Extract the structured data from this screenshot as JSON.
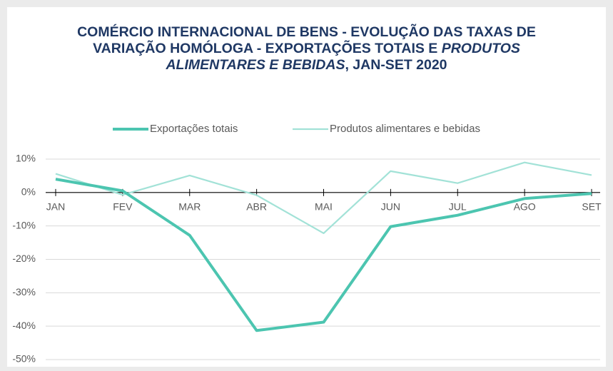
{
  "chart_data": {
    "type": "line",
    "title": [
      "COMÉRCIO INTERNACIONAL DE BENS - EVOLUÇÃO DAS TAXAS DE VARIAÇÃO HOMÓLOGA - EXPORTAÇÕES TOTAIS E ",
      "PRODUTOS ALIMENTARES E BEBIDAS",
      ", JAN-SET 2020"
    ],
    "categories": [
      "JAN",
      "FEV",
      "MAR",
      "ABR",
      "MAI",
      "JUN",
      "JUL",
      "AGO",
      "SET"
    ],
    "series": [
      {
        "name": "Exportações totais",
        "color": "#4cc5b0",
        "values": [
          4,
          0.5,
          -12.8,
          -41.3,
          -38.8,
          -10.2,
          -6.8,
          -1.8,
          -0.3
        ]
      },
      {
        "name": "Produtos alimentares e bebidas",
        "color": "#a2e2d7",
        "values": [
          5.6,
          -0.7,
          5.1,
          -0.8,
          -12.2,
          6.4,
          2.8,
          9.0,
          5.2
        ]
      }
    ],
    "ylim": [
      -50,
      10
    ],
    "yticks": [
      {
        "value": 10,
        "label": "10%"
      },
      {
        "value": 0,
        "label": "0%"
      },
      {
        "value": -10,
        "label": "-10%"
      },
      {
        "value": -20,
        "label": "-20%"
      },
      {
        "value": -30,
        "label": "-30%"
      },
      {
        "value": -40,
        "label": "-40%"
      },
      {
        "value": -50,
        "label": "-50%"
      }
    ],
    "grid": true,
    "legend": "top"
  }
}
